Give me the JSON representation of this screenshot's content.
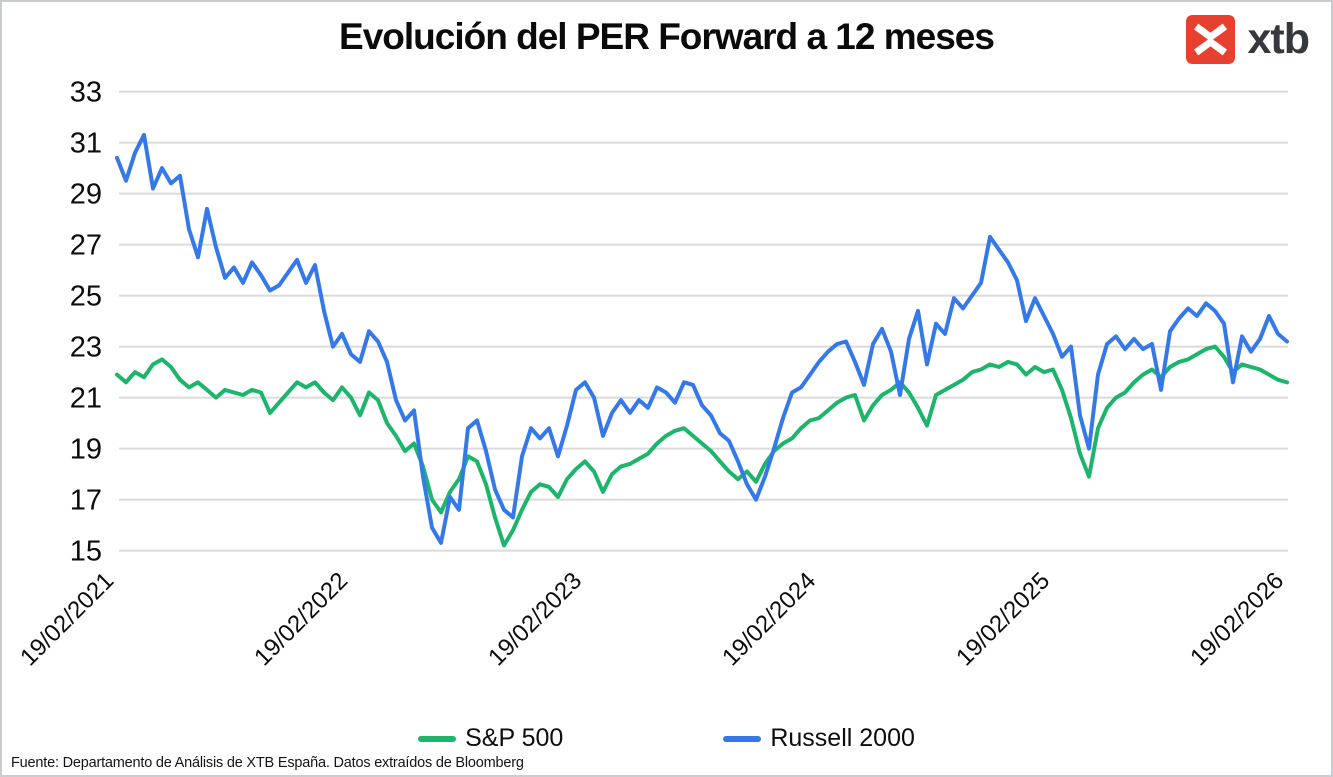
{
  "title": "Evolución del PER Forward a 12 meses",
  "logo": {
    "brand": "xtb",
    "red": "#e8402f",
    "text_color": "#35383f"
  },
  "footer": "Fuente: Departamento de Análisis de XTB España. Datos extraídos de Bloomberg",
  "colors": {
    "sp500": "#1cb56b",
    "russell": "#3579e8",
    "grid": "#dbdbdb",
    "axis_text": "#0d0d0d",
    "background": "#ffffff"
  },
  "chart_data": {
    "type": "line",
    "title": "Evolución del PER Forward a 12 meses",
    "xlabel": "",
    "ylabel": "",
    "grid": "horizontal",
    "legend_position": "bottom",
    "ylim": [
      15,
      33
    ],
    "y_ticks": [
      15,
      17,
      19,
      21,
      23,
      25,
      27,
      29,
      31,
      33
    ],
    "x_tick_labels": [
      "19/02/2021",
      "19/02/2022",
      "19/02/2023",
      "19/02/2024",
      "19/02/2025",
      "19/02/2026"
    ],
    "x_range_note": "weekly-style series sampled biweekly from 19/02/2021 to 19/02/2026, 131 points, evenly spaced",
    "series": [
      {
        "name": "S&P 500",
        "color": "#1cb56b",
        "values": [
          21.9,
          21.6,
          22.0,
          21.8,
          22.3,
          22.5,
          22.2,
          21.7,
          21.4,
          21.6,
          21.3,
          21.0,
          21.3,
          21.2,
          21.1,
          21.3,
          21.2,
          20.4,
          20.8,
          21.2,
          21.6,
          21.4,
          21.6,
          21.2,
          20.9,
          21.4,
          21.0,
          20.3,
          21.2,
          20.9,
          20.0,
          19.5,
          18.9,
          19.2,
          18.3,
          17.0,
          16.5,
          17.3,
          17.8,
          18.7,
          18.5,
          17.6,
          16.3,
          15.2,
          15.8,
          16.6,
          17.3,
          17.6,
          17.5,
          17.1,
          17.8,
          18.2,
          18.5,
          18.1,
          17.3,
          18.0,
          18.3,
          18.4,
          18.6,
          18.8,
          19.2,
          19.5,
          19.7,
          19.8,
          19.5,
          19.2,
          18.9,
          18.5,
          18.1,
          17.8,
          18.1,
          17.7,
          18.4,
          18.9,
          19.2,
          19.4,
          19.8,
          20.1,
          20.2,
          20.5,
          20.8,
          21.0,
          21.1,
          20.1,
          20.7,
          21.1,
          21.3,
          21.6,
          21.2,
          20.6,
          19.9,
          21.1,
          21.3,
          21.5,
          21.7,
          22.0,
          22.1,
          22.3,
          22.2,
          22.4,
          22.3,
          21.9,
          22.2,
          22.0,
          22.1,
          21.3,
          20.2,
          18.8,
          17.9,
          19.8,
          20.6,
          21.0,
          21.2,
          21.6,
          21.9,
          22.1,
          21.8,
          22.2,
          22.4,
          22.5,
          22.7,
          22.9,
          23.0,
          22.6,
          22.0,
          22.3,
          22.2,
          22.1,
          21.9,
          21.7,
          21.6
        ]
      },
      {
        "name": "Russell 2000",
        "color": "#3579e8",
        "values": [
          30.4,
          29.5,
          30.6,
          31.3,
          29.2,
          30.0,
          29.4,
          29.7,
          27.6,
          26.5,
          28.4,
          26.9,
          25.7,
          26.1,
          25.5,
          26.3,
          25.8,
          25.2,
          25.4,
          25.9,
          26.4,
          25.5,
          26.2,
          24.4,
          23.0,
          23.5,
          22.7,
          22.4,
          23.6,
          23.2,
          22.4,
          20.9,
          20.1,
          20.5,
          17.9,
          15.9,
          15.3,
          17.1,
          16.6,
          19.8,
          20.1,
          18.9,
          17.4,
          16.6,
          16.3,
          18.7,
          19.8,
          19.4,
          19.8,
          18.7,
          19.9,
          21.3,
          21.6,
          21.0,
          19.5,
          20.4,
          20.9,
          20.4,
          20.9,
          20.6,
          21.4,
          21.2,
          20.8,
          21.6,
          21.5,
          20.7,
          20.3,
          19.6,
          19.3,
          18.5,
          17.6,
          17.0,
          17.9,
          19.0,
          20.2,
          21.2,
          21.4,
          21.9,
          22.4,
          22.8,
          23.1,
          23.2,
          22.4,
          21.5,
          23.1,
          23.7,
          22.8,
          21.1,
          23.3,
          24.4,
          22.3,
          23.9,
          23.5,
          24.9,
          24.5,
          25.0,
          25.5,
          27.3,
          26.8,
          26.3,
          25.6,
          24.0,
          24.9,
          24.2,
          23.5,
          22.6,
          23.0,
          20.3,
          19.0,
          21.9,
          23.1,
          23.4,
          22.9,
          23.3,
          22.9,
          23.1,
          21.3,
          23.6,
          24.1,
          24.5,
          24.2,
          24.7,
          24.4,
          23.9,
          21.6,
          23.4,
          22.8,
          23.3,
          24.2,
          23.5,
          23.2
        ]
      }
    ]
  }
}
